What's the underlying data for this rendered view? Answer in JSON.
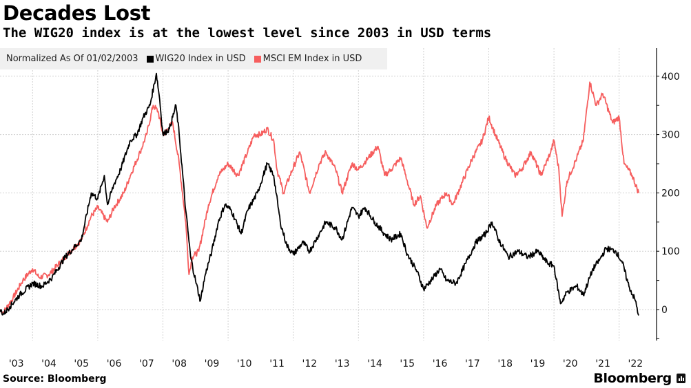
{
  "header": {
    "title": "Decades Lost",
    "subtitle": "The WIG20 index is at the lowest level since 2003 in USD terms"
  },
  "legend": {
    "note": "Normalized As Of 01/02/2003",
    "items": [
      {
        "label": "WIG20 Index in USD",
        "color": "#000000"
      },
      {
        "label": "MSCI EM Index in USD",
        "color": "#f65e5e"
      }
    ]
  },
  "footer": {
    "source": "Source: Bloomberg",
    "brand": "Bloomberg",
    "brand_icon": "bloomberg-chart-icon"
  },
  "chart_data": {
    "type": "line",
    "title": "Decades Lost",
    "subtitle": "The WIG20 index is at the lowest level since 2003 in USD terms",
    "xlabel": "",
    "ylabel": "",
    "x_range": [
      2003.0,
      2022.65
    ],
    "ylim": [
      -50,
      450
    ],
    "y_ticks": [
      0,
      100,
      200,
      300,
      400
    ],
    "y_tick_labels": [
      "0",
      "100",
      "200",
      "300",
      "400"
    ],
    "y_axis_side": "right",
    "x_tick_labels": [
      "'03",
      "'04",
      "'05",
      "'06",
      "'07",
      "'08",
      "'09",
      "'10",
      "'11",
      "'12",
      "'13",
      "'14",
      "'15",
      "'16",
      "'17",
      "'18",
      "'19",
      "'20",
      "'21",
      "'22"
    ],
    "x_tick_years": [
      2003,
      2004,
      2005,
      2006,
      2007,
      2008,
      2009,
      2010,
      2011,
      2012,
      2013,
      2014,
      2015,
      2016,
      2017,
      2018,
      2019,
      2020,
      2021,
      2022
    ],
    "grid": true,
    "legend_position": "top-left",
    "series": [
      {
        "name": "WIG20 Index in USD",
        "color": "#000000",
        "x": [
          2003.0,
          2003.1,
          2003.3,
          2003.6,
          2004.0,
          2004.3,
          2004.6,
          2005.0,
          2005.5,
          2005.8,
          2006.0,
          2006.2,
          2006.3,
          2006.5,
          2006.7,
          2007.0,
          2007.2,
          2007.4,
          2007.6,
          2007.8,
          2007.9,
          2008.0,
          2008.2,
          2008.4,
          2008.5,
          2008.7,
          2008.85,
          2009.0,
          2009.15,
          2009.3,
          2009.5,
          2009.7,
          2009.9,
          2010.1,
          2010.4,
          2010.6,
          2010.9,
          2011.2,
          2011.4,
          2011.6,
          2011.8,
          2012.0,
          2012.3,
          2012.5,
          2012.8,
          2013.0,
          2013.3,
          2013.5,
          2013.8,
          2014.0,
          2014.2,
          2014.5,
          2014.8,
          2015.0,
          2015.3,
          2015.5,
          2015.8,
          2016.0,
          2016.3,
          2016.5,
          2016.7,
          2017.0,
          2017.3,
          2017.6,
          2017.9,
          2018.1,
          2018.3,
          2018.6,
          2018.9,
          2019.2,
          2019.5,
          2019.8,
          2020.0,
          2020.2,
          2020.4,
          2020.7,
          2020.9,
          2021.2,
          2021.4,
          2021.6,
          2021.9,
          2022.1,
          2022.3,
          2022.5,
          2022.6
        ],
        "values": [
          0,
          -8,
          5,
          25,
          45,
          40,
          55,
          90,
          120,
          200,
          190,
          230,
          180,
          215,
          240,
          290,
          300,
          330,
          350,
          405,
          360,
          300,
          310,
          350,
          300,
          170,
          90,
          50,
          15,
          60,
          100,
          150,
          180,
          170,
          130,
          170,
          200,
          250,
          230,
          150,
          110,
          95,
          115,
          100,
          130,
          150,
          140,
          120,
          175,
          160,
          175,
          150,
          130,
          120,
          130,
          95,
          65,
          35,
          55,
          70,
          50,
          45,
          80,
          115,
          130,
          150,
          120,
          90,
          100,
          90,
          100,
          80,
          75,
          10,
          30,
          40,
          25,
          70,
          85,
          105,
          100,
          80,
          40,
          15,
          -10
        ]
      },
      {
        "name": "MSCI EM Index in USD",
        "color": "#f65e5e",
        "x": [
          2003.0,
          2003.1,
          2003.4,
          2003.7,
          2004.0,
          2004.2,
          2004.5,
          2005.0,
          2005.5,
          2005.8,
          2006.0,
          2006.3,
          2006.5,
          2006.8,
          2007.0,
          2007.3,
          2007.5,
          2007.7,
          2007.85,
          2008.0,
          2008.3,
          2008.5,
          2008.7,
          2008.8,
          2008.9,
          2009.1,
          2009.4,
          2009.7,
          2010.0,
          2010.3,
          2010.6,
          2010.8,
          2011.0,
          2011.2,
          2011.4,
          2011.5,
          2011.7,
          2011.9,
          2012.2,
          2012.5,
          2012.8,
          2013.0,
          2013.3,
          2013.5,
          2013.8,
          2014.0,
          2014.3,
          2014.6,
          2014.8,
          2015.0,
          2015.3,
          2015.5,
          2015.7,
          2015.9,
          2016.1,
          2016.4,
          2016.7,
          2016.9,
          2017.2,
          2017.5,
          2017.8,
          2018.0,
          2018.2,
          2018.5,
          2018.8,
          2019.0,
          2019.3,
          2019.6,
          2019.9,
          2020.0,
          2020.15,
          2020.25,
          2020.4,
          2020.7,
          2020.9,
          2021.1,
          2021.3,
          2021.5,
          2021.8,
          2022.0,
          2022.15,
          2022.4,
          2022.6
        ],
        "values": [
          0,
          -5,
          20,
          50,
          70,
          55,
          60,
          90,
          120,
          160,
          175,
          150,
          175,
          200,
          230,
          270,
          300,
          350,
          340,
          300,
          320,
          250,
          150,
          60,
          90,
          100,
          180,
          230,
          250,
          230,
          270,
          300,
          300,
          310,
          290,
          240,
          200,
          230,
          270,
          200,
          250,
          270,
          240,
          200,
          250,
          240,
          260,
          280,
          230,
          240,
          260,
          220,
          180,
          195,
          140,
          180,
          200,
          180,
          220,
          260,
          290,
          330,
          300,
          260,
          230,
          240,
          270,
          230,
          270,
          290,
          240,
          160,
          220,
          260,
          290,
          390,
          350,
          370,
          320,
          330,
          250,
          230,
          200
        ]
      }
    ]
  }
}
